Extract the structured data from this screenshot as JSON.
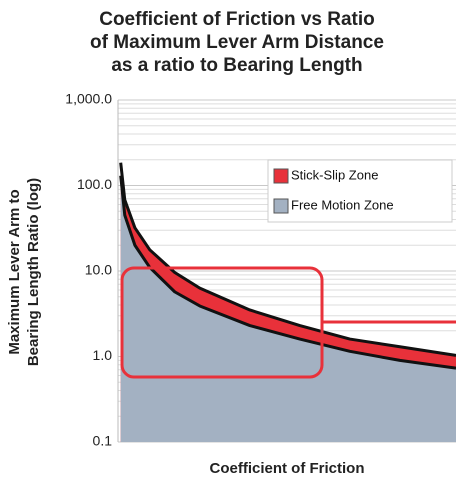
{
  "chart_data": {
    "type": "area",
    "title": [
      "Coefficient of Friction vs Ratio",
      "of Maximum Lever Arm Distance",
      "as a ratio to Bearing Length"
    ],
    "x_label": "Coefficient of Friction",
    "y_label": [
      "Maximum Lever Arm to",
      "Bearing Length Ratio (log)"
    ],
    "x": [
      0.004,
      0.01,
      0.025,
      0.047,
      0.084,
      0.121,
      0.195,
      0.269,
      0.343,
      0.417,
      0.5
    ],
    "xlim": [
      0,
      0.5
    ],
    "series": [
      {
        "name": "Stick-Slip Zone",
        "color": "#e8313a",
        "values": [
          185,
          68,
          32,
          17.7,
          9.6,
          6.3,
          3.5,
          2.3,
          1.6,
          1.3,
          1.03
        ]
      },
      {
        "name": "Free Motion Zone",
        "color": "#a3b1c2",
        "values": [
          130,
          45,
          20,
          11,
          5.7,
          3.9,
          2.3,
          1.6,
          1.15,
          0.9,
          0.73
        ]
      }
    ],
    "y_scale": "log",
    "ylim": [
      0.1,
      1000
    ],
    "yticks": [
      {
        "value": 0.1,
        "label": "0.1"
      },
      {
        "value": 1,
        "label": "1.0"
      },
      {
        "value": 10,
        "label": "10.0"
      },
      {
        "value": 100,
        "label": "100.0"
      },
      {
        "value": 1000,
        "label": "1,000.0"
      }
    ],
    "grid": true,
    "minor_grid": true,
    "legend": "upper right"
  }
}
